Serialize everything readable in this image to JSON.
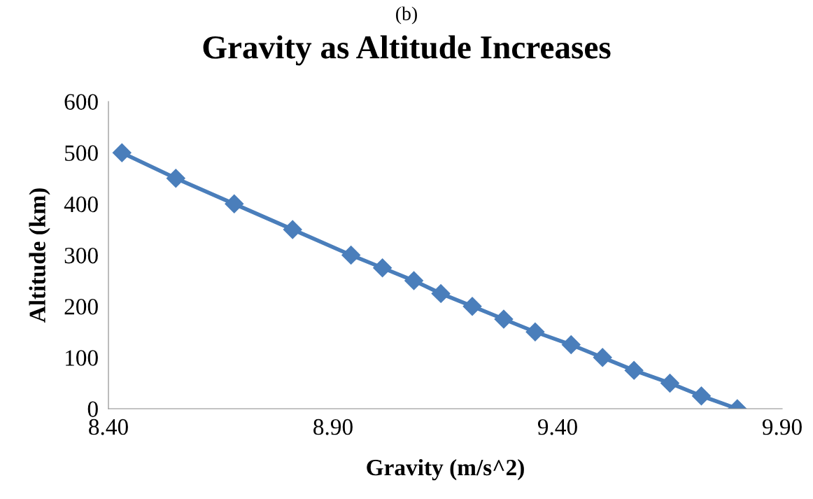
{
  "chart_data": {
    "type": "line",
    "title": "Gravity as Altitude Increases",
    "annotations": [
      "(b)"
    ],
    "xlabel": "Gravity (m/s^2)",
    "ylabel": "Altitude (km)",
    "x": [
      8.43,
      8.55,
      8.68,
      8.81,
      8.94,
      9.01,
      9.08,
      9.14,
      9.21,
      9.28,
      9.35,
      9.43,
      9.5,
      9.57,
      9.65,
      9.72,
      9.8
    ],
    "series": [
      {
        "color": "#4a7ebb",
        "values": [
          500,
          450,
          400,
          350,
          300,
          275,
          250,
          225,
          200,
          175,
          150,
          125,
          100,
          75,
          50,
          25,
          0
        ]
      }
    ],
    "xlim": [
      8.4,
      9.9
    ],
    "xticks": [
      {
        "value": 8.4,
        "label": "8.40"
      },
      {
        "value": 8.9,
        "label": "8.90"
      },
      {
        "value": 9.4,
        "label": "9.40"
      },
      {
        "value": 9.9,
        "label": "9.90"
      }
    ],
    "ylim": [
      0,
      600
    ],
    "yticks": [
      0,
      100,
      200,
      300,
      400,
      500,
      600
    ],
    "grid": false,
    "legend": false,
    "marker": "diamond",
    "line_style": "solid"
  }
}
